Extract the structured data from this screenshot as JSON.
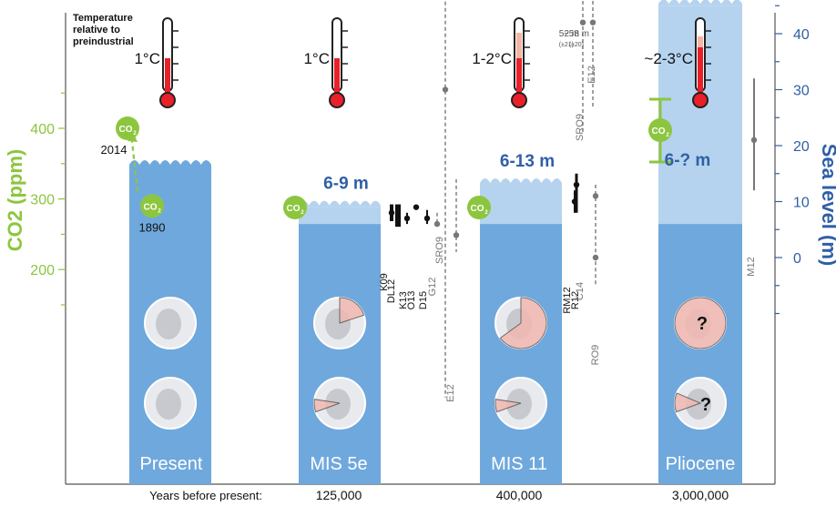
{
  "colors": {
    "co2": "#8cc63f",
    "sea": "#2f5fa6",
    "water": "#6fa8dc",
    "water_light": "#b5d3ee",
    "thermo_red": "#e8202a",
    "thermo_pink": "#f4b6a3",
    "sector_pink": "#f2b8b0",
    "axis": "#444444",
    "grey": "#888888"
  },
  "thermometer_caption": "Temperature relative to preindustrial",
  "chart_data": {
    "type": "infographic",
    "x_label": "Years before present:",
    "left_axis": {
      "label": "CO2 (ppm)",
      "ticks": [
        200,
        300,
        400
      ],
      "range": [
        150,
        480
      ]
    },
    "right_axis": {
      "label": "Sea level (m)",
      "ticks": [
        0,
        10,
        20,
        30,
        40
      ],
      "range": [
        -10,
        47
      ]
    },
    "periods": [
      {
        "id": "present",
        "label": "Present",
        "years": "",
        "temperature": "1°C",
        "temp_fill_frac": 0.45,
        "temp_pink_frac": 0,
        "sea_level_m": 0,
        "sea_level_range": [
          0,
          0
        ],
        "sea_level_text": "",
        "co2_points": [
          {
            "ppm": 400,
            "year": "2014"
          },
          {
            "ppm": 290,
            "year": "1890"
          }
        ],
        "greenland_loss_frac": 0,
        "antarctica_loss_frac": 0
      },
      {
        "id": "mis5e",
        "label": "MIS 5e",
        "years": "125,000",
        "temperature": "1°C",
        "temp_fill_frac": 0.45,
        "temp_pink_frac": 0,
        "sea_level_m": 6,
        "sea_level_range": [
          6,
          9
        ],
        "sea_level_text": "6-9 m",
        "co2_points": [
          {
            "ppm": 288,
            "year": ""
          }
        ],
        "greenland_loss_frac": 0.2,
        "antarctica_loss_frac": 0.08
      },
      {
        "id": "mis11",
        "label": "MIS 11",
        "years": "400,000",
        "temperature": "1-2°C",
        "temp_fill_frac": 0.45,
        "temp_pink_frac": 0.35,
        "sea_level_m": 6,
        "sea_level_range": [
          6,
          13
        ],
        "sea_level_text": "6-13 m",
        "co2_points": [
          {
            "ppm": 288,
            "year": ""
          }
        ],
        "greenland_loss_frac": 0.65,
        "antarctica_loss_frac": 0.08
      },
      {
        "id": "pliocene",
        "label": "Pliocene",
        "years": "3,000,000",
        "temperature": "~2-3°C",
        "temp_fill_frac": 0.6,
        "temp_pink_frac": 0.15,
        "sea_level_m": 6,
        "sea_level_range": [
          6,
          45
        ],
        "sea_level_text": "6-? m",
        "co2_points": [
          {
            "ppm": 400,
            "year": "",
            "range": [
              350,
              450
            ]
          }
        ],
        "greenland_loss_frac": 1.0,
        "antarctica_loss_frac": 0.12,
        "question_mark": "?"
      }
    ],
    "estimates": [
      {
        "label": "K09",
        "center": 8,
        "low": 6.5,
        "high": 9.5
      },
      {
        "label": "DL12",
        "center": 7,
        "low": 5.5,
        "high": 9.5
      },
      {
        "label": "K13",
        "center": 7,
        "low": 6,
        "high": 8
      },
      {
        "label": "O13",
        "center": 9,
        "low": 9,
        "high": 9
      },
      {
        "label": "D15",
        "center": 7,
        "low": 6,
        "high": 8.5
      },
      {
        "label": "SRO9",
        "center": 6,
        "low": 5.5,
        "high": 8
      },
      {
        "label": "G12",
        "center": 4,
        "low": 1,
        "high": 14
      },
      {
        "label": "E12",
        "center": 30,
        "low": -25,
        "high": 48
      },
      {
        "label": "RM12",
        "center": 10,
        "low": 8,
        "high": 12
      },
      {
        "label": "R12",
        "center": 13,
        "low": 8,
        "high": 15
      },
      {
        "label": "C14",
        "center": 11,
        "low": 5,
        "high": 13
      },
      {
        "label": "RO9",
        "center": 0,
        "low": -5,
        "high": 5
      },
      {
        "label": "SRO9",
        "center": 42,
        "low": 22,
        "high": 47,
        "note": "52 m",
        "note_sub": "(±21)"
      },
      {
        "label": "E12",
        "center": 42,
        "low": 27,
        "high": 47,
        "note": "~58 m",
        "note_sub": "(±20)"
      },
      {
        "label": "M12",
        "center": 21,
        "low": 12,
        "high": 32
      }
    ]
  }
}
